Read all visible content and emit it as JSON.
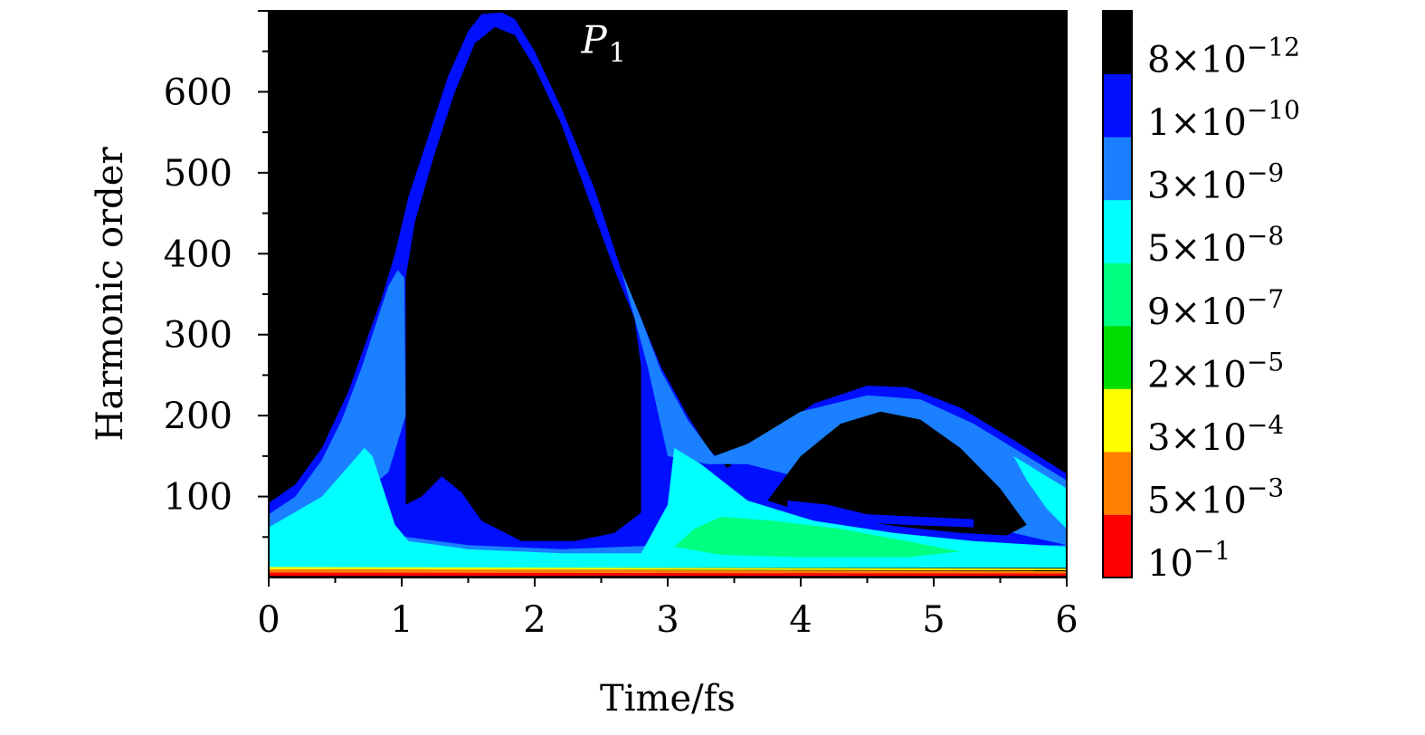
{
  "chart_data": {
    "type": "heatmap",
    "xlabel": "Time/fs",
    "ylabel": "Harmonic order",
    "xlim": [
      0,
      6
    ],
    "ylim": [
      0,
      700
    ],
    "xticks": [
      0,
      1,
      2,
      3,
      4,
      5,
      6
    ],
    "yticks": [
      100,
      200,
      300,
      400,
      500,
      600
    ],
    "annotation": {
      "text": "P",
      "subscript": "1",
      "x": 2.35,
      "y": 648
    },
    "colorbar": {
      "bands": [
        {
          "label_base": "10",
          "label_exp": "−1",
          "color": "#ff0000"
        },
        {
          "label_base": "5×10",
          "label_exp": "−3",
          "color": "#ff7f00"
        },
        {
          "label_base": "3×10",
          "label_exp": "−4",
          "color": "#ffff00"
        },
        {
          "label_base": "2×10",
          "label_exp": "−5",
          "color": "#00dd00"
        },
        {
          "label_base": "9×10",
          "label_exp": "−7",
          "color": "#00ff80"
        },
        {
          "label_base": "5×10",
          "label_exp": "−8",
          "color": "#00ffff"
        },
        {
          "label_base": "3×10",
          "label_exp": "−9",
          "color": "#1a80ff"
        },
        {
          "label_base": "1×10",
          "label_exp": "−10",
          "color": "#0010ff"
        },
        {
          "label_base": "8×10",
          "label_exp": "−12",
          "color": "#000000"
        }
      ]
    },
    "background_color": "#000000",
    "contour_regions": [
      {
        "name": "outer-blue-first-arch",
        "color": "#0010ff",
        "points": [
          [
            0,
            92
          ],
          [
            0.2,
            115
          ],
          [
            0.4,
            160
          ],
          [
            0.6,
            230
          ],
          [
            0.75,
            300
          ],
          [
            0.85,
            345
          ],
          [
            0.95,
            400
          ],
          [
            1.05,
            470
          ],
          [
            1.2,
            545
          ],
          [
            1.35,
            620
          ],
          [
            1.5,
            675
          ],
          [
            1.6,
            696
          ],
          [
            1.75,
            698
          ],
          [
            1.85,
            690
          ],
          [
            2.0,
            650
          ],
          [
            2.2,
            580
          ],
          [
            2.45,
            480
          ],
          [
            2.65,
            380
          ],
          [
            2.8,
            320
          ],
          [
            2.95,
            260
          ],
          [
            3.15,
            200
          ],
          [
            3.3,
            160
          ],
          [
            3.45,
            135
          ],
          [
            3.45,
            30
          ],
          [
            0,
            30
          ]
        ]
      },
      {
        "name": "outer-blue-second-arch",
        "color": "#0010ff",
        "points": [
          [
            3.45,
            135
          ],
          [
            3.7,
            170
          ],
          [
            4.1,
            215
          ],
          [
            4.5,
            237
          ],
          [
            4.8,
            235
          ],
          [
            5.2,
            210
          ],
          [
            5.6,
            170
          ],
          [
            6,
            128
          ],
          [
            6,
            30
          ],
          [
            3.45,
            30
          ]
        ]
      },
      {
        "name": "light-blue-left",
        "color": "#1a80ff",
        "points": [
          [
            0,
            78
          ],
          [
            0.2,
            100
          ],
          [
            0.4,
            145
          ],
          [
            0.55,
            195
          ],
          [
            0.7,
            260
          ],
          [
            0.82,
            320
          ],
          [
            0.9,
            360
          ],
          [
            0.97,
            380
          ],
          [
            1.02,
            370
          ],
          [
            1.03,
            200
          ],
          [
            0.9,
            130
          ],
          [
            0.6,
            90
          ],
          [
            0.3,
            65
          ],
          [
            0,
            55
          ]
        ]
      },
      {
        "name": "light-blue-right",
        "color": "#1a80ff",
        "points": [
          [
            2.65,
            380
          ],
          [
            2.8,
            320
          ],
          [
            2.95,
            255
          ],
          [
            3.15,
            195
          ],
          [
            3.35,
            150
          ],
          [
            3.6,
            165
          ],
          [
            4.0,
            205
          ],
          [
            4.5,
            225
          ],
          [
            4.9,
            220
          ],
          [
            5.3,
            190
          ],
          [
            5.7,
            150
          ],
          [
            6,
            120
          ],
          [
            6,
            40
          ],
          [
            5.6,
            55
          ],
          [
            5.2,
            80
          ],
          [
            4.7,
            100
          ],
          [
            4.2,
            115
          ],
          [
            3.6,
            140
          ],
          [
            3.3,
            140
          ],
          [
            3.0,
            150
          ],
          [
            2.85,
            260
          ],
          [
            2.75,
            320
          ]
        ]
      },
      {
        "name": "light-blue-bottom",
        "color": "#1a80ff",
        "points": [
          [
            0,
            60
          ],
          [
            0.8,
            55
          ],
          [
            1.5,
            40
          ],
          [
            2.2,
            35
          ],
          [
            3.0,
            40
          ],
          [
            3.5,
            38
          ],
          [
            4.5,
            40
          ],
          [
            5.5,
            40
          ],
          [
            6,
            40
          ],
          [
            6,
            15
          ],
          [
            0,
            15
          ]
        ]
      },
      {
        "name": "cyan-floor",
        "color": "#00ffff",
        "points": [
          [
            0,
            62
          ],
          [
            0.4,
            100
          ],
          [
            0.72,
            160
          ],
          [
            0.78,
            150
          ],
          [
            0.95,
            65
          ],
          [
            1.05,
            45
          ],
          [
            1.5,
            35
          ],
          [
            2.2,
            30
          ],
          [
            2.8,
            30
          ],
          [
            3.0,
            90
          ],
          [
            3.05,
            160
          ],
          [
            3.25,
            140
          ],
          [
            3.6,
            95
          ],
          [
            4.1,
            70
          ],
          [
            4.7,
            55
          ],
          [
            5.3,
            45
          ],
          [
            5.8,
            40
          ],
          [
            6,
            38
          ],
          [
            6,
            12
          ],
          [
            0,
            12
          ]
        ]
      },
      {
        "name": "cyan-right-inner",
        "color": "#00ffff",
        "points": [
          [
            5.6,
            150
          ],
          [
            5.8,
            130
          ],
          [
            6,
            110
          ],
          [
            6,
            60
          ],
          [
            5.85,
            85
          ],
          [
            5.7,
            120
          ]
        ]
      },
      {
        "name": "green-patch",
        "color": "#00ff80",
        "points": [
          [
            3.05,
            38
          ],
          [
            3.2,
            60
          ],
          [
            3.4,
            75
          ],
          [
            3.8,
            70
          ],
          [
            4.3,
            60
          ],
          [
            4.8,
            45
          ],
          [
            5.2,
            32
          ],
          [
            4.8,
            25
          ],
          [
            4.0,
            25
          ],
          [
            3.4,
            28
          ]
        ]
      },
      {
        "name": "orange-strip",
        "color": "#ff7f00",
        "points": [
          [
            0,
            10
          ],
          [
            6,
            8
          ],
          [
            6,
            3
          ],
          [
            0,
            3
          ]
        ]
      },
      {
        "name": "yellow-strip",
        "color": "#ffff00",
        "points": [
          [
            0,
            13
          ],
          [
            6,
            11
          ],
          [
            6,
            9
          ],
          [
            0,
            10
          ]
        ]
      },
      {
        "name": "red-strip",
        "color": "#ff0000",
        "points": [
          [
            0,
            6
          ],
          [
            6,
            5
          ],
          [
            6,
            2
          ],
          [
            0,
            2
          ]
        ]
      },
      {
        "name": "black-hole-left-arch",
        "color": "#000000",
        "points": [
          [
            1.03,
            370
          ],
          [
            1.1,
            440
          ],
          [
            1.25,
            525
          ],
          [
            1.4,
            600
          ],
          [
            1.55,
            660
          ],
          [
            1.7,
            680
          ],
          [
            1.85,
            670
          ],
          [
            2.0,
            630
          ],
          [
            2.2,
            560
          ],
          [
            2.4,
            470
          ],
          [
            2.6,
            380
          ],
          [
            2.75,
            320
          ],
          [
            2.8,
            260
          ],
          [
            2.8,
            80
          ],
          [
            2.6,
            55
          ],
          [
            2.3,
            45
          ],
          [
            1.9,
            45
          ],
          [
            1.6,
            70
          ],
          [
            1.45,
            105
          ],
          [
            1.3,
            125
          ],
          [
            1.15,
            100
          ],
          [
            1.03,
            90
          ]
        ]
      },
      {
        "name": "blue-inner-bump",
        "color": "#0010ff",
        "points": [
          [
            1.05,
            90
          ],
          [
            1.15,
            100
          ],
          [
            1.3,
            125
          ],
          [
            1.45,
            105
          ],
          [
            1.6,
            70
          ],
          [
            1.8,
            50
          ],
          [
            1.5,
            48
          ],
          [
            1.2,
            55
          ],
          [
            1.05,
            60
          ]
        ]
      },
      {
        "name": "black-hole-right-arch",
        "color": "#000000",
        "points": [
          [
            3.75,
            95
          ],
          [
            4.0,
            150
          ],
          [
            4.3,
            190
          ],
          [
            4.6,
            205
          ],
          [
            4.9,
            195
          ],
          [
            5.2,
            160
          ],
          [
            5.5,
            110
          ],
          [
            5.7,
            65
          ],
          [
            5.55,
            52
          ],
          [
            5.2,
            55
          ],
          [
            4.8,
            62
          ],
          [
            4.4,
            70
          ],
          [
            4.0,
            82
          ]
        ]
      },
      {
        "name": "blue-right-inner-bump",
        "color": "#0010ff",
        "points": [
          [
            3.9,
            95
          ],
          [
            4.2,
            90
          ],
          [
            4.5,
            78
          ],
          [
            4.9,
            75
          ],
          [
            5.3,
            72
          ],
          [
            5.3,
            62
          ],
          [
            4.8,
            65
          ],
          [
            4.4,
            68
          ],
          [
            4.1,
            76
          ],
          [
            3.9,
            85
          ]
        ]
      }
    ]
  }
}
